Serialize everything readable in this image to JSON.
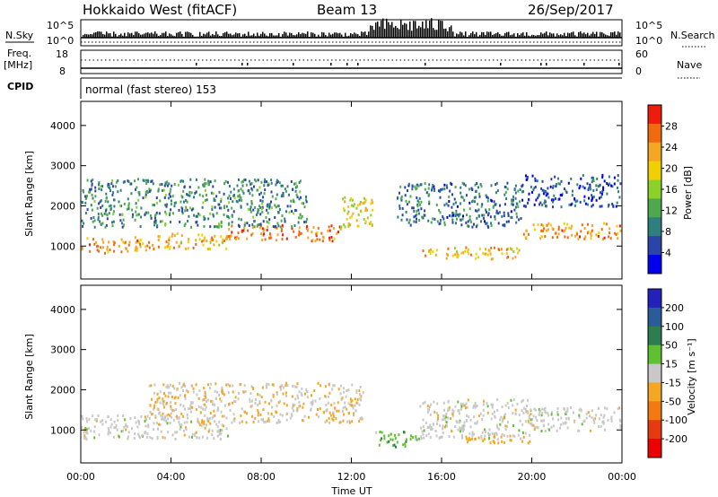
{
  "header": {
    "radar": "Hokkaido West (fitACF)",
    "beam": "Beam 13",
    "date": "26/Sep/2017"
  },
  "status_panels": {
    "nsky_label": "N.Sky",
    "nsky_ticks": [
      "10^5",
      "10^0"
    ],
    "nsearch_label": "N.Search",
    "nsearch_ticks": [
      "10^5",
      "10^0"
    ],
    "freq_label_1": "Freq.",
    "freq_label_2": "[MHz]",
    "freq_ticks": [
      "18",
      "8"
    ],
    "nave_label": "Nave",
    "nave_ticks": [
      "60",
      "0"
    ],
    "cpid_label": "CPID",
    "cpid_value": "normal (fast stereo) 153"
  },
  "colors": {
    "power_scale": [
      "#0000ee",
      "#2a44aa",
      "#2f7f7f",
      "#4ea84e",
      "#8ad12a",
      "#f0d000",
      "#f5a623",
      "#f26a10",
      "#ee1c0c"
    ],
    "velocity_scale": [
      "#2222bb",
      "#2a5c9a",
      "#2e7d4f",
      "#5fc030",
      "#c8c8c8",
      "#f5a623",
      "#f27a10",
      "#e83a10",
      "#ee0000"
    ]
  },
  "chart_data": [
    {
      "type": "heatmap",
      "title": "",
      "xlabel": "Time UT",
      "ylabel": "Slant Range [km]",
      "x_ticks": [
        "00:00",
        "04:00",
        "08:00",
        "12:00",
        "16:00",
        "20:00",
        "00:00"
      ],
      "y_ticks": [
        "1000",
        "2000",
        "3000",
        "4000"
      ],
      "ylim": [
        180,
        4600
      ],
      "colorbar_label": "Power [dB]",
      "colorbar_ticks": [
        "4",
        "8",
        "12",
        "16",
        "20",
        "24",
        "28"
      ],
      "colorbar_range": [
        0,
        32
      ],
      "bands": [
        {
          "t0": 0,
          "t1": 3,
          "r0": 850,
          "r1": 1250,
          "value": 24
        },
        {
          "t0": 3,
          "t1": 6.5,
          "r0": 950,
          "r1": 1350,
          "value": 22
        },
        {
          "t0": 6.5,
          "t1": 11.5,
          "r0": 1150,
          "r1": 1550,
          "value": 26
        },
        {
          "t0": 11.5,
          "t1": 13,
          "r0": 1500,
          "r1": 2300,
          "value": 20
        },
        {
          "t0": 0,
          "t1": 10,
          "r0": 1500,
          "r1": 2700,
          "value": 10
        },
        {
          "t0": 15,
          "t1": 19.5,
          "r0": 700,
          "r1": 1000,
          "value": 22
        },
        {
          "t0": 14,
          "t1": 19.5,
          "r0": 1500,
          "r1": 2600,
          "value": 8
        },
        {
          "t0": 19.5,
          "t1": 24,
          "r0": 1200,
          "r1": 1600,
          "value": 24
        },
        {
          "t0": 19.5,
          "t1": 24,
          "r0": 2000,
          "r1": 2800,
          "value": 6
        }
      ]
    },
    {
      "type": "heatmap",
      "title": "",
      "xlabel": "Time UT",
      "ylabel": "Slant Range [km]",
      "x_ticks": [
        "00:00",
        "04:00",
        "08:00",
        "12:00",
        "16:00",
        "20:00",
        "00:00"
      ],
      "y_ticks": [
        "1000",
        "2000",
        "3000",
        "4000"
      ],
      "ylim": [
        180,
        4600
      ],
      "colorbar_label": "Velocity [m s⁻¹]",
      "colorbar_ticks": [
        "200",
        "100",
        "50",
        "15",
        "-15",
        "-50",
        "-100",
        "-200"
      ],
      "colorbar_range": [
        -250,
        250
      ],
      "bands": [
        {
          "t0": 0,
          "t1": 6.5,
          "r0": 800,
          "r1": 1400,
          "value": 0
        },
        {
          "t0": 3,
          "t1": 12.5,
          "r0": 1200,
          "r1": 2200,
          "value": -20
        },
        {
          "t0": 13,
          "t1": 15,
          "r0": 600,
          "r1": 1000,
          "value": 60
        },
        {
          "t0": 15,
          "t1": 20,
          "r0": 800,
          "r1": 1800,
          "value": 0
        },
        {
          "t0": 17,
          "t1": 20,
          "r0": 700,
          "r1": 900,
          "value": -60
        },
        {
          "t0": 19.5,
          "t1": 24,
          "r0": 1000,
          "r1": 1600,
          "value": 0
        }
      ]
    }
  ]
}
